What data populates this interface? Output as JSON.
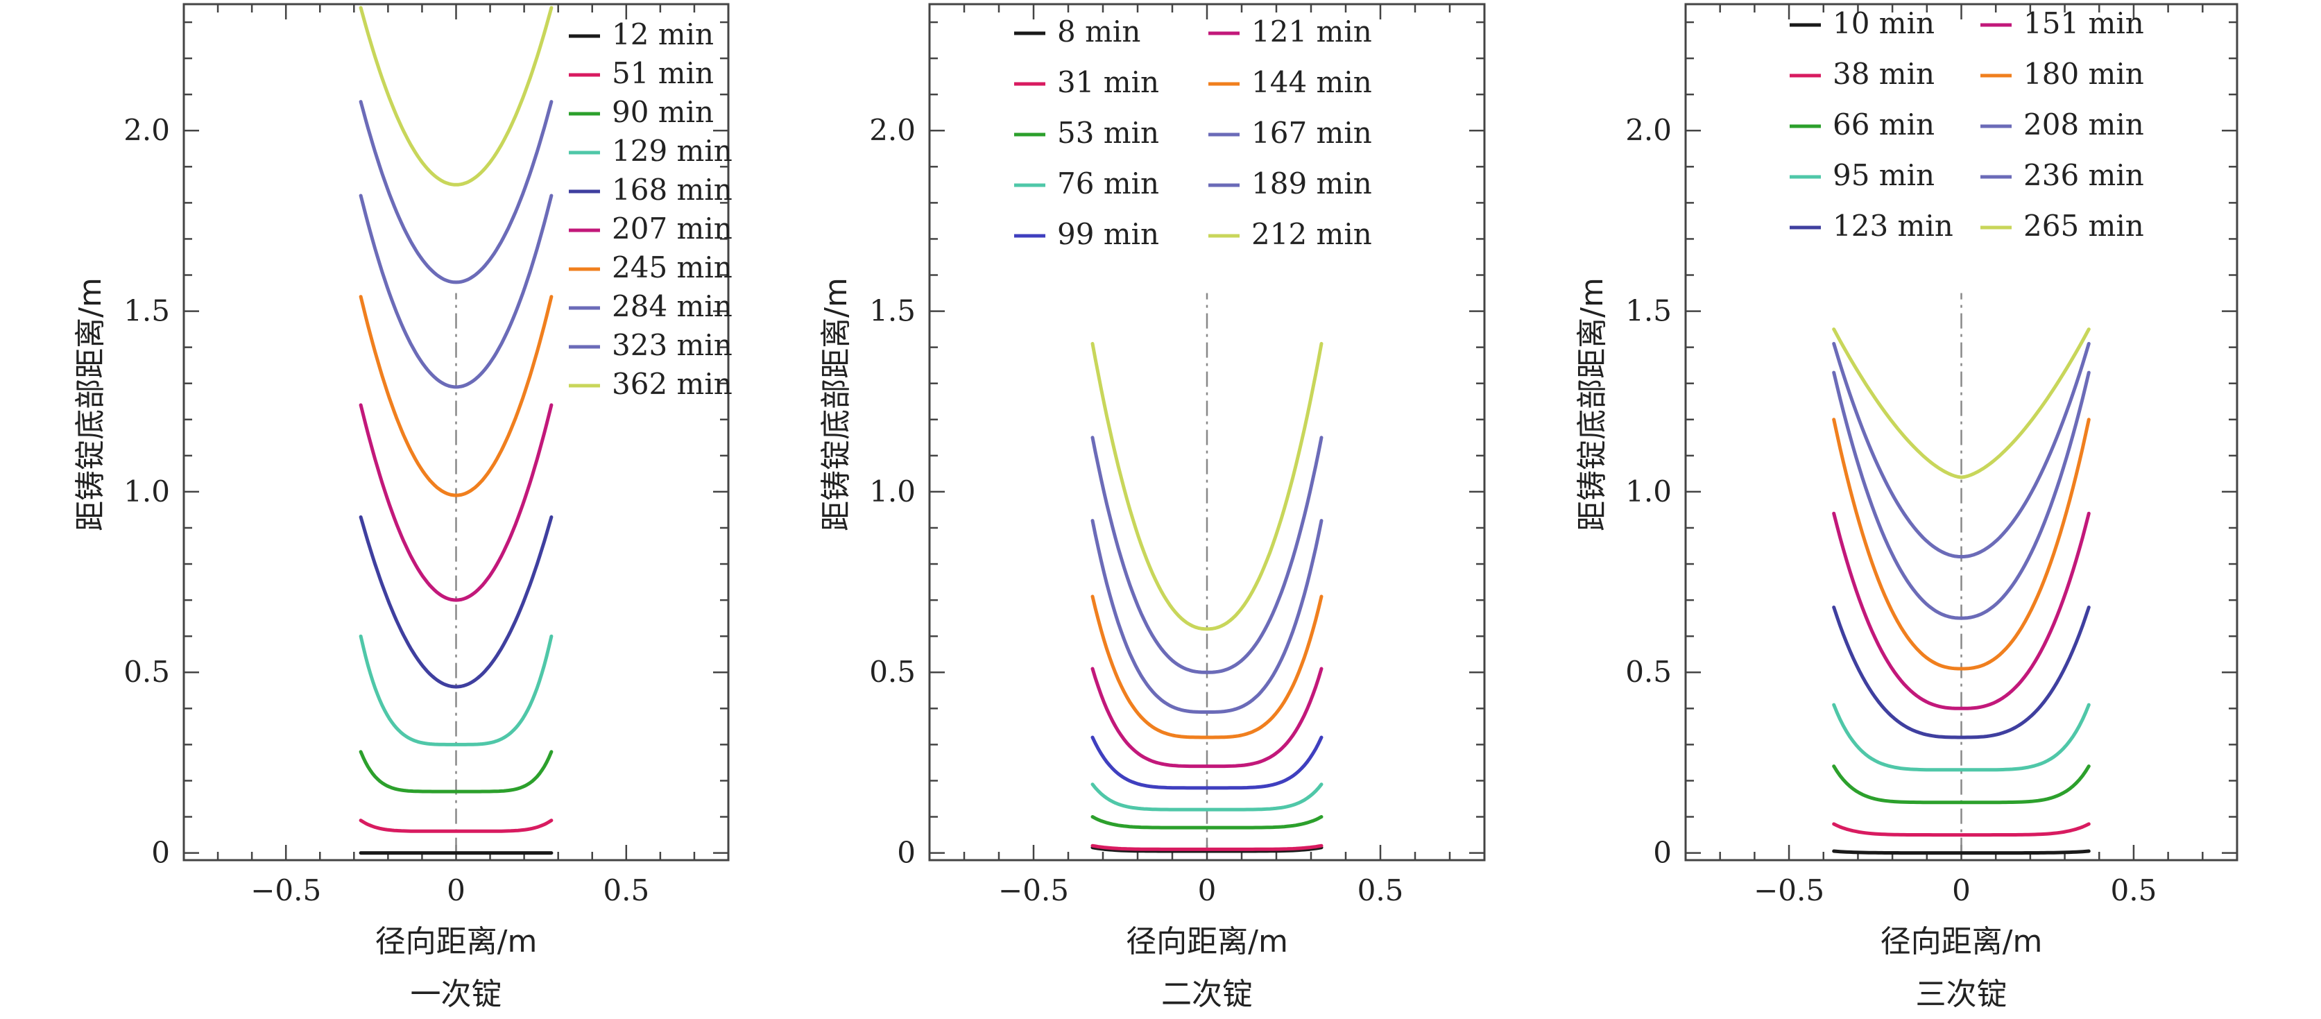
{
  "chart_data": [
    {
      "type": "line",
      "caption": "一次锭",
      "xlabel": "径向距离/m",
      "ylabel": "距铸锭底部距离/m",
      "xlim": [
        -0.8,
        0.8
      ],
      "ylim": [
        -0.02,
        2.35
      ],
      "xticks": [
        -0.5,
        0,
        0.5
      ],
      "xtick_labels": [
        "−0.5",
        "0",
        "0.5"
      ],
      "yticks": [
        0,
        0.5,
        1.0,
        1.5,
        2.0
      ],
      "ytick_labels": [
        "0",
        "0.5",
        "1.0",
        "1.5",
        "2.0"
      ],
      "centerline": {
        "x": 0,
        "y_from": 0,
        "y_to": 1.55
      },
      "legend_position": "top-right",
      "legend_columns": 1,
      "series": [
        {
          "name": "12 min",
          "color": "#1a1a1a",
          "x_min": -0.28,
          "x_max": 0.28,
          "y_center": 0.0,
          "y_edge": 0.0,
          "exponent": 2
        },
        {
          "name": "51 min",
          "color": "#d81b60",
          "x_min": -0.28,
          "x_max": 0.28,
          "y_center": 0.06,
          "y_edge": 0.09,
          "exponent": 6
        },
        {
          "name": "90 min",
          "color": "#2ca02c",
          "x_min": -0.28,
          "x_max": 0.28,
          "y_center": 0.17,
          "y_edge": 0.28,
          "exponent": 6
        },
        {
          "name": "129 min",
          "color": "#4fc7a8",
          "x_min": -0.28,
          "x_max": 0.28,
          "y_center": 0.3,
          "y_edge": 0.6,
          "exponent": 4
        },
        {
          "name": "168 min",
          "color": "#3f3f9f",
          "x_min": -0.28,
          "x_max": 0.28,
          "y_center": 0.46,
          "y_edge": 0.93,
          "exponent": 2
        },
        {
          "name": "207 min",
          "color": "#c2187a",
          "x_min": -0.28,
          "x_max": 0.28,
          "y_center": 0.7,
          "y_edge": 1.24,
          "exponent": 2
        },
        {
          "name": "245 min",
          "color": "#f07f1e",
          "x_min": -0.28,
          "x_max": 0.28,
          "y_center": 0.99,
          "y_edge": 1.54,
          "exponent": 2
        },
        {
          "name": "284 min",
          "color": "#6b6bb8",
          "x_min": -0.28,
          "x_max": 0.28,
          "y_center": 1.29,
          "y_edge": 1.82,
          "exponent": 2
        },
        {
          "name": "323 min",
          "color": "#6b6bb8",
          "x_min": -0.28,
          "x_max": 0.28,
          "y_center": 1.58,
          "y_edge": 2.08,
          "exponent": 2
        },
        {
          "name": "362 min",
          "color": "#c8d65a",
          "x_min": -0.28,
          "x_max": 0.28,
          "y_center": 1.85,
          "y_edge": 2.34,
          "exponent": 2
        }
      ]
    },
    {
      "type": "line",
      "caption": "二次锭",
      "xlabel": "径向距离/m",
      "ylabel": "距铸锭底部距离/m",
      "xlim": [
        -0.8,
        0.8
      ],
      "ylim": [
        -0.02,
        2.35
      ],
      "xticks": [
        -0.5,
        0,
        0.5
      ],
      "xtick_labels": [
        "−0.5",
        "0",
        "0.5"
      ],
      "yticks": [
        0,
        0.5,
        1.0,
        1.5,
        2.0
      ],
      "ytick_labels": [
        "0",
        "0.5",
        "1.0",
        "1.5",
        "2.0"
      ],
      "centerline": {
        "x": 0,
        "y_from": 0,
        "y_to": 1.55
      },
      "legend_position": "top",
      "legend_columns": 2,
      "series": [
        {
          "name": "8 min",
          "color": "#1a1a1a",
          "x_min": -0.33,
          "x_max": 0.33,
          "y_center": 0.005,
          "y_edge": 0.015,
          "exponent": 6
        },
        {
          "name": "31 min",
          "color": "#d81b60",
          "x_min": -0.33,
          "x_max": 0.33,
          "y_center": 0.01,
          "y_edge": 0.02,
          "exponent": 6
        },
        {
          "name": "53 min",
          "color": "#2ca02c",
          "x_min": -0.33,
          "x_max": 0.33,
          "y_center": 0.07,
          "y_edge": 0.1,
          "exponent": 6
        },
        {
          "name": "76 min",
          "color": "#4fc7a8",
          "x_min": -0.33,
          "x_max": 0.33,
          "y_center": 0.12,
          "y_edge": 0.19,
          "exponent": 6
        },
        {
          "name": "99 min",
          "color": "#3f3fbf",
          "x_min": -0.33,
          "x_max": 0.33,
          "y_center": 0.18,
          "y_edge": 0.32,
          "exponent": 5
        },
        {
          "name": "121 min",
          "color": "#c2187a",
          "x_min": -0.33,
          "x_max": 0.33,
          "y_center": 0.24,
          "y_edge": 0.51,
          "exponent": 4
        },
        {
          "name": "144 min",
          "color": "#f07f1e",
          "x_min": -0.33,
          "x_max": 0.33,
          "y_center": 0.32,
          "y_edge": 0.71,
          "exponent": 3.5
        },
        {
          "name": "167 min",
          "color": "#6b6bb8",
          "x_min": -0.33,
          "x_max": 0.33,
          "y_center": 0.39,
          "y_edge": 0.92,
          "exponent": 3
        },
        {
          "name": "189 min",
          "color": "#6b6bb8",
          "x_min": -0.33,
          "x_max": 0.33,
          "y_center": 0.5,
          "y_edge": 1.15,
          "exponent": 2.5
        },
        {
          "name": "212 min",
          "color": "#c8d65a",
          "x_min": -0.33,
          "x_max": 0.33,
          "y_center": 0.62,
          "y_edge": 1.41,
          "exponent": 2.2
        }
      ]
    },
    {
      "type": "line",
      "caption": "三次锭",
      "xlabel": "径向距离/m",
      "ylabel": "距铸锭底部距离/m",
      "xlim": [
        -0.8,
        0.8
      ],
      "ylim": [
        -0.02,
        2.35
      ],
      "xticks": [
        -0.5,
        0,
        0.5
      ],
      "xtick_labels": [
        "−0.5",
        "0",
        "0.5"
      ],
      "yticks": [
        0,
        0.5,
        1.0,
        1.5,
        2.0
      ],
      "ytick_labels": [
        "0",
        "0.5",
        "1.0",
        "1.5",
        "2.0"
      ],
      "centerline": {
        "x": 0,
        "y_from": 0,
        "y_to": 1.55
      },
      "legend_position": "top",
      "legend_columns": 2,
      "series": [
        {
          "name": "10 min",
          "color": "#1a1a1a",
          "x_min": -0.37,
          "x_max": 0.37,
          "y_center": 0.0,
          "y_edge": 0.005,
          "exponent": 6
        },
        {
          "name": "38 min",
          "color": "#d81b60",
          "x_min": -0.37,
          "x_max": 0.37,
          "y_center": 0.05,
          "y_edge": 0.08,
          "exponent": 6
        },
        {
          "name": "66 min",
          "color": "#2ca02c",
          "x_min": -0.37,
          "x_max": 0.37,
          "y_center": 0.14,
          "y_edge": 0.24,
          "exponent": 6
        },
        {
          "name": "95 min",
          "color": "#4fc7a8",
          "x_min": -0.37,
          "x_max": 0.37,
          "y_center": 0.23,
          "y_edge": 0.41,
          "exponent": 5
        },
        {
          "name": "123 min",
          "color": "#3f3f9f",
          "x_min": -0.37,
          "x_max": 0.37,
          "y_center": 0.32,
          "y_edge": 0.68,
          "exponent": 3
        },
        {
          "name": "151 min",
          "color": "#c2187a",
          "x_min": -0.37,
          "x_max": 0.37,
          "y_center": 0.4,
          "y_edge": 0.94,
          "exponent": 2.6
        },
        {
          "name": "180 min",
          "color": "#f07f1e",
          "x_min": -0.37,
          "x_max": 0.37,
          "y_center": 0.51,
          "y_edge": 1.2,
          "exponent": 2.4
        },
        {
          "name": "208 min",
          "color": "#6b6bb8",
          "x_min": -0.37,
          "x_max": 0.37,
          "y_center": 0.65,
          "y_edge": 1.33,
          "exponent": 2.2
        },
        {
          "name": "236 min",
          "color": "#6b6bb8",
          "x_min": -0.37,
          "x_max": 0.37,
          "y_center": 0.82,
          "y_edge": 1.41,
          "exponent": 2.0
        },
        {
          "name": "265 min",
          "color": "#c8d65a",
          "x_min": -0.37,
          "x_max": 0.37,
          "y_center": 1.04,
          "y_edge": 1.45,
          "exponent": 1.6
        }
      ]
    }
  ]
}
